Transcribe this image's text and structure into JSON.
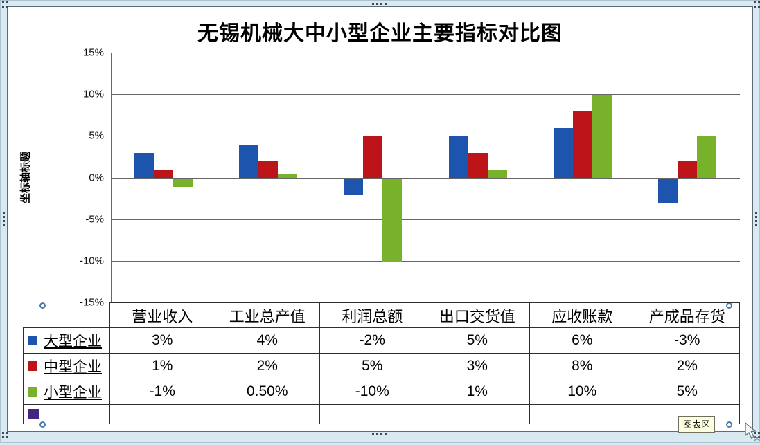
{
  "title": "无锡机械大中小型企业主要指标对比图",
  "y_axis": {
    "title": "坐标轴标题",
    "tick_labels": [
      "15%",
      "10%",
      "5%",
      "0%",
      "-5%",
      "-10%",
      "-15%"
    ]
  },
  "chart_data": {
    "type": "bar",
    "title": "无锡机械大中小型企业主要指标对比图",
    "categories": [
      "营业收入",
      "工业总产值",
      "利润总额",
      "出口交货值",
      "应收账款",
      "产成品存货"
    ],
    "series": [
      {
        "name": "大型企业",
        "color": "#1c54ae",
        "values": [
          3,
          4,
          -2,
          5,
          6,
          -3
        ],
        "labels": [
          "3%",
          "4%",
          "-2%",
          "5%",
          "6%",
          "-3%"
        ]
      },
      {
        "name": "中型企业",
        "color": "#bc1418",
        "values": [
          1,
          2,
          5,
          3,
          8,
          2
        ],
        "labels": [
          "1%",
          "2%",
          "5%",
          "3%",
          "8%",
          "2%"
        ]
      },
      {
        "name": "小型企业",
        "color": "#77b22a",
        "values": [
          -1,
          0.5,
          -10,
          1,
          10,
          5
        ],
        "labels": [
          "-1%",
          "0.50%",
          "-10%",
          "1%",
          "10%",
          "5%"
        ]
      },
      {
        "name": "",
        "color": "#45267f",
        "values": [],
        "labels": [
          "",
          "",
          "",
          "",
          "",
          ""
        ]
      }
    ],
    "ylabel": "坐标轴标题",
    "ylim": [
      -15,
      15
    ],
    "ytick_step": 5,
    "grid": true,
    "legend_position": "data-table-left-column",
    "data_table_shown": true
  },
  "overlay": {
    "chart_area_tooltip": "图表区"
  }
}
